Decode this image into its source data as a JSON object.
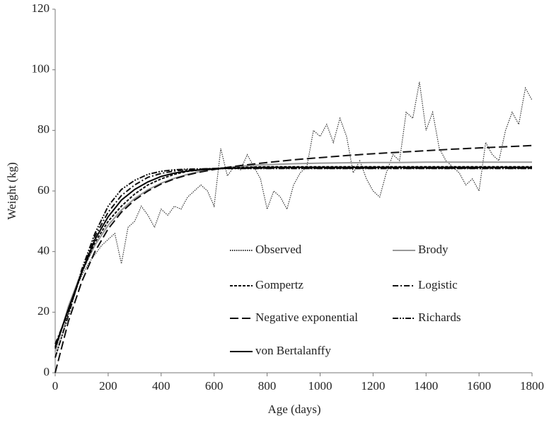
{
  "chart_data": {
    "type": "line",
    "xlabel": "Age (days)",
    "ylabel": "Weight (kg)",
    "xlim": [
      0,
      1800
    ],
    "xticks": [
      0,
      200,
      400,
      600,
      800,
      1000,
      1200,
      1400,
      1600,
      1800
    ],
    "ylim": [
      0,
      120
    ],
    "yticks": [
      0,
      20,
      40,
      60,
      80,
      100,
      120
    ],
    "grid": false,
    "legend": "lower right",
    "x": [
      0,
      50,
      100,
      150,
      200,
      250,
      300,
      350,
      400,
      450,
      500,
      550,
      600,
      650,
      700,
      750,
      800,
      900,
      1000,
      1100,
      1200,
      1300,
      1400,
      1500,
      1600,
      1700,
      1800
    ],
    "series": [
      {
        "name": "Observed",
        "color": "#333333",
        "dash": "1.5,1.5",
        "x": [
          0,
          25,
          50,
          75,
          100,
          125,
          150,
          175,
          200,
          225,
          250,
          275,
          300,
          325,
          350,
          375,
          400,
          425,
          450,
          475,
          500,
          525,
          550,
          575,
          600,
          625,
          650,
          675,
          700,
          725,
          750,
          775,
          800,
          825,
          850,
          875,
          900,
          925,
          950,
          975,
          1000,
          1025,
          1050,
          1075,
          1100,
          1125,
          1150,
          1175,
          1200,
          1225,
          1250,
          1275,
          1300,
          1325,
          1350,
          1375,
          1400,
          1425,
          1450,
          1475,
          1500,
          1525,
          1550,
          1575,
          1600,
          1625,
          1650,
          1675,
          1700,
          1725,
          1750,
          1775,
          1800
        ],
        "values": [
          5,
          12,
          20,
          27,
          32,
          36,
          39,
          42,
          44,
          46,
          36,
          48,
          50,
          55,
          52,
          48,
          54,
          52,
          55,
          54,
          58,
          60,
          62,
          60,
          55,
          74,
          65,
          68,
          67,
          72,
          68,
          64,
          54,
          60,
          58,
          54,
          62,
          66,
          68,
          80,
          78,
          82,
          76,
          84,
          78,
          66,
          70,
          64,
          60,
          58,
          66,
          72,
          70,
          86,
          84,
          96,
          80,
          86,
          74,
          70,
          68,
          66,
          62,
          64,
          60,
          76,
          72,
          70,
          80,
          86,
          82,
          94,
          90
        ]
      },
      {
        "name": "Brody",
        "color": "#999999",
        "dash": "none",
        "values": [
          7,
          22,
          33.4,
          42.1,
          48.7,
          53.7,
          57.5,
          60.4,
          62.6,
          64.2,
          65.5,
          66.5,
          67.2,
          67.7,
          68.2,
          68.5,
          68.7,
          69,
          69.2,
          69.3,
          69.4,
          69.4,
          69.5,
          69.5,
          69.5,
          69.5,
          69.5
        ]
      },
      {
        "name": "Gompertz",
        "color": "#111111",
        "dash": "4,2",
        "values": [
          8,
          21,
          33,
          43,
          50,
          55,
          59,
          62,
          64,
          65.5,
          66.5,
          67,
          67.4,
          67.7,
          67.8,
          67.9,
          68,
          68,
          68,
          68,
          68,
          68,
          68,
          68,
          68,
          68,
          68
        ]
      },
      {
        "name": "Logistic",
        "color": "#111111",
        "dash": "8,3,2,3",
        "values": [
          9.5,
          20,
          33,
          45,
          53,
          58.5,
          62,
          64.5,
          65.8,
          66.6,
          67,
          67.2,
          67.4,
          67.5,
          67.5,
          67.5,
          67.5,
          67.5,
          67.5,
          67.5,
          67.5,
          67.5,
          67.5,
          67.5,
          67.5,
          67.5,
          67.5
        ]
      },
      {
        "name": "Negative exponential",
        "color": "#111111",
        "dash": "12,5",
        "values": [
          0,
          17,
          30,
          40,
          47.5,
          53,
          57,
          60,
          62.3,
          64,
          65.3,
          66.3,
          67.1,
          67.8,
          68.4,
          68.9,
          69.4,
          70.3,
          71,
          71.7,
          72.3,
          72.8,
          73.3,
          73.8,
          74.2,
          74.6,
          75
        ]
      },
      {
        "name": "Richards",
        "color": "#111111",
        "dash": "8,2,2,2,2,2",
        "values": [
          5,
          19,
          34,
          46,
          55,
          60.5,
          63.5,
          65.5,
          66.5,
          67,
          67.2,
          67.3,
          67.4,
          67.4,
          67.4,
          67.4,
          67.4,
          67.4,
          67.4,
          67.4,
          67.4,
          67.4,
          67.4,
          67.4,
          67.4,
          67.4,
          67.4
        ]
      },
      {
        "name": "von Bertalanffy",
        "color": "#000000",
        "dash": "none",
        "values": [
          8.5,
          21,
          33,
          44,
          51.5,
          57,
          60.5,
          63,
          64.8,
          65.9,
          66.6,
          67,
          67.3,
          67.5,
          67.6,
          67.7,
          67.8,
          67.8,
          67.8,
          67.8,
          67.8,
          67.8,
          67.8,
          67.8,
          67.8,
          67.8,
          67.8
        ]
      }
    ]
  }
}
